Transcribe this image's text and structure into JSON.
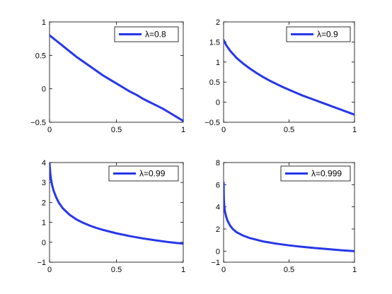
{
  "chart_data": [
    {
      "type": "line",
      "title": "",
      "xlabel": "",
      "ylabel": "",
      "xlim": [
        0,
        1
      ],
      "ylim": [
        -0.5,
        1
      ],
      "x_ticks": [
        0,
        0.5,
        1
      ],
      "x_tick_labels": [
        "0",
        "0.5",
        "1"
      ],
      "y_ticks": [
        -0.5,
        0,
        0.5,
        1
      ],
      "y_tick_labels": [
        "−0.5",
        "0",
        "0.5",
        "1"
      ],
      "grid": false,
      "legend_position": "top-right",
      "series": [
        {
          "name": "λ=0.8",
          "color": "#2637e8",
          "x": [
            0,
            0.05,
            0.1,
            0.15,
            0.2,
            0.25,
            0.3,
            0.35,
            0.4,
            0.45,
            0.5,
            0.55,
            0.6,
            0.65,
            0.7,
            0.75,
            0.8,
            0.85,
            0.9,
            0.95,
            1
          ],
          "y": [
            0.8,
            0.72,
            0.64,
            0.56,
            0.48,
            0.41,
            0.34,
            0.27,
            0.2,
            0.14,
            0.08,
            0.02,
            -0.04,
            -0.09,
            -0.15,
            -0.2,
            -0.25,
            -0.3,
            -0.36,
            -0.42,
            -0.48
          ]
        }
      ]
    },
    {
      "type": "line",
      "title": "",
      "xlabel": "",
      "ylabel": "",
      "xlim": [
        0,
        1
      ],
      "ylim": [
        -0.5,
        2
      ],
      "x_ticks": [
        0,
        0.5,
        1
      ],
      "x_tick_labels": [
        "0",
        "0.5",
        "1"
      ],
      "y_ticks": [
        -0.5,
        0,
        0.5,
        1,
        1.5,
        2
      ],
      "y_tick_labels": [
        "−0.5",
        "0",
        "0.5",
        "1",
        "1.5",
        "2"
      ],
      "grid": false,
      "legend_position": "top-right",
      "series": [
        {
          "name": "λ=0.9",
          "color": "#2637e8",
          "x": [
            0,
            0.02,
            0.05,
            0.1,
            0.15,
            0.2,
            0.25,
            0.3,
            0.35,
            0.4,
            0.45,
            0.5,
            0.55,
            0.6,
            0.65,
            0.7,
            0.75,
            0.8,
            0.85,
            0.9,
            0.95,
            1
          ],
          "y": [
            1.55,
            1.42,
            1.28,
            1.1,
            0.96,
            0.84,
            0.73,
            0.63,
            0.54,
            0.46,
            0.38,
            0.31,
            0.24,
            0.17,
            0.11,
            0.05,
            -0.01,
            -0.07,
            -0.13,
            -0.19,
            -0.25,
            -0.31
          ]
        }
      ]
    },
    {
      "type": "line",
      "title": "",
      "xlabel": "",
      "ylabel": "",
      "xlim": [
        0,
        1
      ],
      "ylim": [
        -1,
        4
      ],
      "x_ticks": [
        0,
        0.5,
        1
      ],
      "x_tick_labels": [
        "0",
        "0.5",
        "1"
      ],
      "y_ticks": [
        -1,
        0,
        1,
        2,
        3,
        4
      ],
      "y_tick_labels": [
        "−1",
        "0",
        "1",
        "2",
        "3",
        "4"
      ],
      "grid": false,
      "legend_position": "top-right",
      "series": [
        {
          "name": "λ=0.99",
          "color": "#2637e8",
          "x": [
            0,
            0.005,
            0.01,
            0.02,
            0.03,
            0.05,
            0.07,
            0.1,
            0.15,
            0.2,
            0.25,
            0.3,
            0.35,
            0.4,
            0.5,
            0.6,
            0.7,
            0.8,
            0.9,
            1
          ],
          "y": [
            3.95,
            3.5,
            3.2,
            2.85,
            2.6,
            2.25,
            1.98,
            1.7,
            1.38,
            1.15,
            0.98,
            0.84,
            0.72,
            0.62,
            0.45,
            0.31,
            0.19,
            0.09,
            0.0,
            -0.07
          ]
        }
      ]
    },
    {
      "type": "line",
      "title": "",
      "xlabel": "",
      "ylabel": "",
      "xlim": [
        0,
        1
      ],
      "ylim": [
        -1,
        8
      ],
      "x_ticks": [
        0,
        0.5,
        1
      ],
      "x_tick_labels": [
        "0",
        "0.5",
        "1"
      ],
      "y_ticks": [
        -1,
        0,
        2,
        4,
        6,
        8
      ],
      "y_tick_labels": [
        "−1",
        "0",
        "2",
        "4",
        "6",
        "8"
      ],
      "grid": false,
      "legend_position": "top-right",
      "series": [
        {
          "name": "λ=0.999",
          "color": "#2637e8",
          "x": [
            0,
            0.002,
            0.005,
            0.01,
            0.02,
            0.03,
            0.05,
            0.07,
            0.1,
            0.15,
            0.2,
            0.3,
            0.4,
            0.5,
            0.6,
            0.7,
            0.8,
            0.9,
            1
          ],
          "y": [
            6.2,
            4.7,
            4.1,
            3.6,
            3.1,
            2.75,
            2.3,
            2.0,
            1.7,
            1.4,
            1.18,
            0.88,
            0.68,
            0.52,
            0.39,
            0.28,
            0.18,
            0.08,
            0.0
          ]
        }
      ]
    }
  ]
}
